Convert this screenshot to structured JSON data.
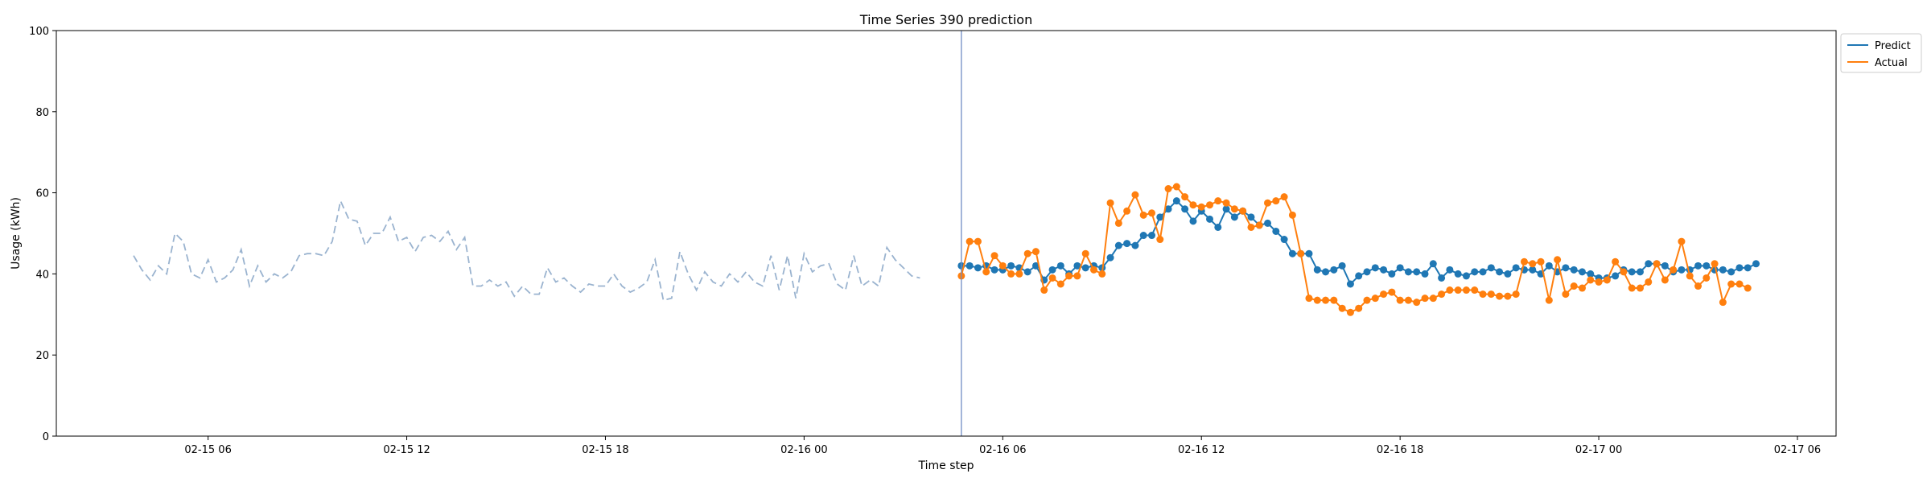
{
  "chart_data": {
    "type": "line",
    "title": "Time Series 390 prediction",
    "xlabel": "Time step",
    "ylabel": "Usage (kWh)",
    "ylim": [
      0,
      100
    ],
    "yticks": [
      0,
      20,
      40,
      60,
      80,
      100
    ],
    "xlim": [
      "2024-02-15T01:25",
      "2024-02-17T07:10"
    ],
    "xticks": [
      {
        "t": "2024-02-15T06:00",
        "label": "02-15 06"
      },
      {
        "t": "2024-02-15T12:00",
        "label": "02-15 12"
      },
      {
        "t": "2024-02-15T18:00",
        "label": "02-15 18"
      },
      {
        "t": "2024-02-16T00:00",
        "label": "02-16 00"
      },
      {
        "t": "2024-02-16T06:00",
        "label": "02-16 06"
      },
      {
        "t": "2024-02-16T12:00",
        "label": "02-16 12"
      },
      {
        "t": "2024-02-16T18:00",
        "label": "02-16 18"
      },
      {
        "t": "2024-02-17T00:00",
        "label": "02-17 00"
      },
      {
        "t": "2024-02-17T06:00",
        "label": "02-17 06"
      }
    ],
    "forecast_start": "2024-02-16T04:45",
    "legend_position": "top-right",
    "grid": false,
    "series": [
      {
        "name": "History",
        "role": "history",
        "color": "#9ab3cf",
        "style": "dashed",
        "start": "2024-02-15T03:45",
        "step_minutes": 15,
        "values": [
          44.5,
          41,
          38.5,
          42,
          40,
          50,
          48,
          40,
          39,
          43.5,
          38,
          39,
          41,
          46,
          37,
          42,
          38,
          40,
          39,
          40.5,
          44.5,
          45,
          45,
          44.5,
          48,
          58,
          53.5,
          53,
          47,
          50,
          50,
          54,
          48,
          49,
          45.5,
          49,
          49.5,
          48,
          50.5,
          46,
          49,
          37,
          37,
          38.5,
          37,
          38,
          34.5,
          37,
          35,
          35,
          41.5,
          38,
          39,
          37,
          35.5,
          37.5,
          37,
          37,
          40,
          37,
          35.5,
          36.5,
          38,
          43.5,
          33.5,
          34,
          45.5,
          40,
          36,
          40.5,
          38,
          37,
          40,
          38,
          40.5,
          38,
          37,
          44.5,
          36,
          44.5,
          34,
          45,
          40.5,
          42,
          42.5,
          37.5,
          36,
          44.5,
          37,
          38.5,
          37,
          46.5,
          43.5,
          41.5,
          39.5,
          39
        ]
      },
      {
        "name": "Predict",
        "role": "predict",
        "color": "#1f77b4",
        "start": "2024-02-16T04:45",
        "step_minutes": 15,
        "values": [
          42,
          42,
          41.5,
          42,
          41,
          41,
          42,
          41.5,
          40.5,
          42,
          38.5,
          41,
          42,
          40,
          42,
          41.5,
          42,
          41.5,
          44,
          47,
          47.5,
          47,
          49.5,
          49.5,
          54,
          56,
          58,
          56,
          53,
          55.5,
          53.5,
          51.5,
          56,
          54,
          55.5,
          54,
          52,
          52.5,
          50.5,
          48.5,
          45,
          45,
          45,
          41,
          40.5,
          41,
          42,
          37.5,
          39.5,
          40.5,
          41.5,
          41,
          40,
          41.5,
          40.5,
          40.5,
          40,
          42.5,
          39,
          41,
          40,
          39.5,
          40.5,
          40.5,
          41.5,
          40.5,
          40,
          41.5,
          41,
          41,
          40,
          42,
          40.5,
          41.5,
          41,
          40.5,
          40,
          39,
          39,
          39.5,
          41,
          40.5,
          40.5,
          42.5,
          42.5,
          42,
          40.5,
          41,
          41,
          42,
          42,
          41,
          41,
          40.5,
          41.5,
          41.5,
          42.5
        ]
      },
      {
        "name": "Actual",
        "role": "actual",
        "color": "#ff7f0e",
        "start": "2024-02-16T04:45",
        "step_minutes": 15,
        "values": [
          39.5,
          48,
          48,
          40.5,
          44.5,
          42,
          40,
          40,
          45,
          45.5,
          36,
          39,
          37.5,
          39.5,
          39.5,
          45,
          41,
          40,
          57.5,
          52.5,
          55.5,
          59.5,
          54.5,
          55,
          48.5,
          61,
          61.5,
          59,
          57,
          56.5,
          57,
          58,
          57.5,
          56,
          55.5,
          51.5,
          52,
          57.5,
          58,
          59,
          54.5,
          45,
          34,
          33.5,
          33.5,
          33.5,
          31.5,
          30.5,
          31.5,
          33.5,
          34,
          35,
          35.5,
          33.5,
          33.5,
          33,
          34,
          34,
          35,
          36,
          36,
          36,
          36,
          35,
          35,
          34.5,
          34.5,
          35,
          43,
          42.5,
          43,
          33.5,
          43.5,
          35,
          37,
          36.5,
          38.5,
          38,
          38.5,
          43,
          40.5,
          36.5,
          36.5,
          38,
          42.5,
          38.5,
          41,
          48,
          39.5,
          37,
          39,
          42.5,
          33,
          37.5,
          37.5,
          36.5
        ]
      }
    ]
  }
}
